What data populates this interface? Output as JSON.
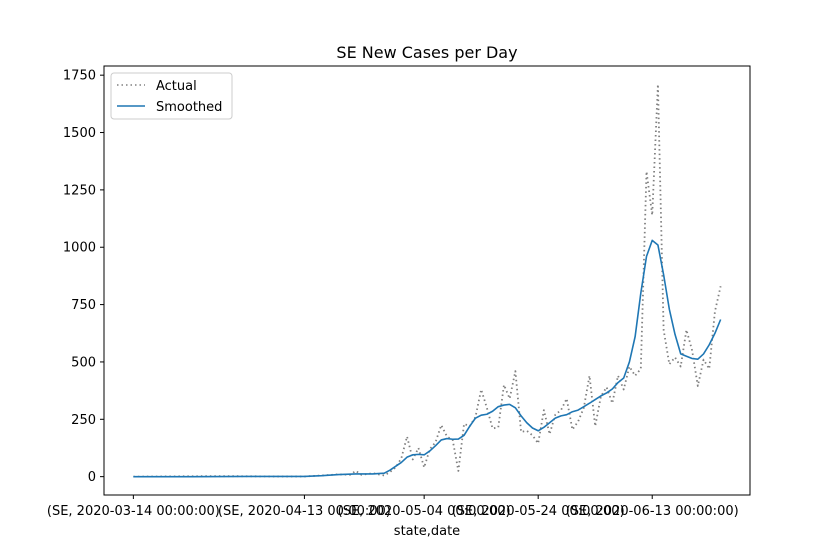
{
  "chart_data": {
    "type": "line",
    "title": "SE New Cases per Day",
    "xlabel": "state,date",
    "ylabel": "",
    "ylim": [
      -80,
      1790
    ],
    "yticks": [
      0,
      250,
      500,
      750,
      1000,
      1250,
      1500,
      1750
    ],
    "x_tick_labels": [
      "(SE, 2020-03-14 00:00:00)",
      "(SE, 2020-04-13 00:00:00)",
      "(SE, 2020-05-04 00:00:00)",
      "(SE, 2020-05-24 00:00:00)",
      "(SE, 2020-06-13 00:00:00)"
    ],
    "x_tick_dates": [
      "2020-03-14",
      "2020-04-13",
      "2020-05-04",
      "2020-05-24",
      "2020-06-13"
    ],
    "legend": {
      "placement": "upper-left",
      "entries": [
        "Actual",
        "Smoothed"
      ]
    },
    "colors": {
      "actual": "#808080",
      "smoothed": "#1f77b4"
    },
    "series": [
      {
        "name": "Actual",
        "style": "dotted",
        "points": [
          [
            "2020-03-14",
            0
          ],
          [
            "2020-03-20",
            1
          ],
          [
            "2020-03-26",
            2
          ],
          [
            "2020-04-01",
            2
          ],
          [
            "2020-04-07",
            1
          ],
          [
            "2020-04-13",
            1
          ],
          [
            "2020-04-16",
            5
          ],
          [
            "2020-04-19",
            10
          ],
          [
            "2020-04-21",
            8
          ],
          [
            "2020-04-22",
            25
          ],
          [
            "2020-04-23",
            8
          ],
          [
            "2020-04-25",
            15
          ],
          [
            "2020-04-27",
            5
          ],
          [
            "2020-04-28",
            20
          ],
          [
            "2020-04-29",
            40
          ],
          [
            "2020-04-30",
            80
          ],
          [
            "2020-05-01",
            175
          ],
          [
            "2020-05-02",
            75
          ],
          [
            "2020-05-03",
            125
          ],
          [
            "2020-05-04",
            40
          ],
          [
            "2020-05-05",
            120
          ],
          [
            "2020-05-06",
            150
          ],
          [
            "2020-05-07",
            225
          ],
          [
            "2020-05-08",
            175
          ],
          [
            "2020-05-09",
            160
          ],
          [
            "2020-05-10",
            25
          ],
          [
            "2020-05-11",
            230
          ],
          [
            "2020-05-12",
            220
          ],
          [
            "2020-05-13",
            260
          ],
          [
            "2020-05-14",
            380
          ],
          [
            "2020-05-15",
            300
          ],
          [
            "2020-05-16",
            210
          ],
          [
            "2020-05-17",
            215
          ],
          [
            "2020-05-18",
            400
          ],
          [
            "2020-05-19",
            340
          ],
          [
            "2020-05-20",
            460
          ],
          [
            "2020-05-21",
            195
          ],
          [
            "2020-05-22",
            200
          ],
          [
            "2020-05-23",
            180
          ],
          [
            "2020-05-24",
            145
          ],
          [
            "2020-05-25",
            290
          ],
          [
            "2020-05-26",
            185
          ],
          [
            "2020-05-27",
            270
          ],
          [
            "2020-05-28",
            290
          ],
          [
            "2020-05-29",
            340
          ],
          [
            "2020-05-30",
            205
          ],
          [
            "2020-05-31",
            240
          ],
          [
            "2020-06-01",
            300
          ],
          [
            "2020-06-02",
            440
          ],
          [
            "2020-06-03",
            220
          ],
          [
            "2020-06-04",
            350
          ],
          [
            "2020-06-05",
            390
          ],
          [
            "2020-06-06",
            320
          ],
          [
            "2020-06-07",
            440
          ],
          [
            "2020-06-08",
            380
          ],
          [
            "2020-06-09",
            480
          ],
          [
            "2020-06-10",
            440
          ],
          [
            "2020-06-11",
            470
          ],
          [
            "2020-06-12",
            1330
          ],
          [
            "2020-06-13",
            1140
          ],
          [
            "2020-06-14",
            1710
          ],
          [
            "2020-06-15",
            640
          ],
          [
            "2020-06-16",
            490
          ],
          [
            "2020-06-17",
            520
          ],
          [
            "2020-06-18",
            480
          ],
          [
            "2020-06-19",
            640
          ],
          [
            "2020-06-20",
            550
          ],
          [
            "2020-06-21",
            395
          ],
          [
            "2020-06-22",
            510
          ],
          [
            "2020-06-23",
            470
          ],
          [
            "2020-06-24",
            720
          ],
          [
            "2020-06-25",
            830
          ]
        ]
      },
      {
        "name": "Smoothed",
        "style": "solid",
        "points": [
          [
            "2020-03-14",
            0
          ],
          [
            "2020-03-24",
            0
          ],
          [
            "2020-04-03",
            1
          ],
          [
            "2020-04-13",
            1
          ],
          [
            "2020-04-16",
            4
          ],
          [
            "2020-04-19",
            9
          ],
          [
            "2020-04-22",
            12
          ],
          [
            "2020-04-25",
            12
          ],
          [
            "2020-04-27",
            15
          ],
          [
            "2020-04-28",
            28
          ],
          [
            "2020-04-29",
            45
          ],
          [
            "2020-04-30",
            62
          ],
          [
            "2020-05-01",
            85
          ],
          [
            "2020-05-02",
            95
          ],
          [
            "2020-05-03",
            97
          ],
          [
            "2020-05-04",
            95
          ],
          [
            "2020-05-05",
            112
          ],
          [
            "2020-05-06",
            135
          ],
          [
            "2020-05-07",
            160
          ],
          [
            "2020-05-08",
            166
          ],
          [
            "2020-05-09",
            163
          ],
          [
            "2020-05-10",
            164
          ],
          [
            "2020-05-11",
            180
          ],
          [
            "2020-05-12",
            220
          ],
          [
            "2020-05-13",
            255
          ],
          [
            "2020-05-14",
            268
          ],
          [
            "2020-05-15",
            272
          ],
          [
            "2020-05-16",
            285
          ],
          [
            "2020-05-17",
            305
          ],
          [
            "2020-05-18",
            312
          ],
          [
            "2020-05-19",
            315
          ],
          [
            "2020-05-20",
            300
          ],
          [
            "2020-05-21",
            265
          ],
          [
            "2020-05-22",
            235
          ],
          [
            "2020-05-23",
            212
          ],
          [
            "2020-05-24",
            200
          ],
          [
            "2020-05-25",
            215
          ],
          [
            "2020-05-26",
            235
          ],
          [
            "2020-05-27",
            255
          ],
          [
            "2020-05-28",
            265
          ],
          [
            "2020-05-29",
            270
          ],
          [
            "2020-05-30",
            283
          ],
          [
            "2020-05-31",
            290
          ],
          [
            "2020-06-01",
            305
          ],
          [
            "2020-06-02",
            320
          ],
          [
            "2020-06-03",
            336
          ],
          [
            "2020-06-04",
            352
          ],
          [
            "2020-06-05",
            365
          ],
          [
            "2020-06-06",
            382
          ],
          [
            "2020-06-07",
            410
          ],
          [
            "2020-06-08",
            430
          ],
          [
            "2020-06-09",
            500
          ],
          [
            "2020-06-10",
            610
          ],
          [
            "2020-06-11",
            800
          ],
          [
            "2020-06-12",
            960
          ],
          [
            "2020-06-13",
            1030
          ],
          [
            "2020-06-14",
            1010
          ],
          [
            "2020-06-15",
            880
          ],
          [
            "2020-06-16",
            730
          ],
          [
            "2020-06-17",
            620
          ],
          [
            "2020-06-18",
            535
          ],
          [
            "2020-06-19",
            525
          ],
          [
            "2020-06-20",
            515
          ],
          [
            "2020-06-21",
            512
          ],
          [
            "2020-06-22",
            535
          ],
          [
            "2020-06-23",
            575
          ],
          [
            "2020-06-24",
            625
          ],
          [
            "2020-06-25",
            685
          ]
        ]
      }
    ]
  }
}
